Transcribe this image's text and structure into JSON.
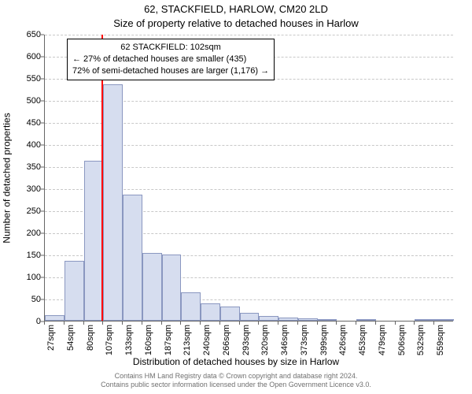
{
  "chart": {
    "type": "histogram",
    "title_main": "62, STACKFIELD, HARLOW, CM20 2LD",
    "title_sub": "Size of property relative to detached houses in Harlow",
    "y_label": "Number of detached properties",
    "x_label": "Distribution of detached houses by size in Harlow",
    "background_color": "#ffffff",
    "grid_color": "#c8c8c8",
    "axis_color": "#666666",
    "ylim": [
      0,
      650
    ],
    "yticks": [
      0,
      50,
      100,
      150,
      200,
      250,
      300,
      350,
      400,
      450,
      500,
      550,
      600,
      650
    ],
    "x_categories": [
      "27sqm",
      "54sqm",
      "80sqm",
      "107sqm",
      "133sqm",
      "160sqm",
      "187sqm",
      "213sqm",
      "240sqm",
      "266sqm",
      "293sqm",
      "320sqm",
      "346sqm",
      "373sqm",
      "399sqm",
      "426sqm",
      "453sqm",
      "479sqm",
      "506sqm",
      "532sqm",
      "559sqm"
    ],
    "bars": [
      {
        "value": 12,
        "color": "#d6ddef",
        "border": "#8a97c0"
      },
      {
        "value": 135,
        "color": "#d6ddef",
        "border": "#8a97c0"
      },
      {
        "value": 363,
        "color": "#d6ddef",
        "border": "#8a97c0"
      },
      {
        "value": 535,
        "color": "#d6ddef",
        "border": "#8a97c0"
      },
      {
        "value": 286,
        "color": "#d6ddef",
        "border": "#8a97c0"
      },
      {
        "value": 154,
        "color": "#d6ddef",
        "border": "#8a97c0"
      },
      {
        "value": 150,
        "color": "#d6ddef",
        "border": "#8a97c0"
      },
      {
        "value": 65,
        "color": "#d6ddef",
        "border": "#8a97c0"
      },
      {
        "value": 40,
        "color": "#d6ddef",
        "border": "#8a97c0"
      },
      {
        "value": 32,
        "color": "#d6ddef",
        "border": "#8a97c0"
      },
      {
        "value": 18,
        "color": "#d6ddef",
        "border": "#8a97c0"
      },
      {
        "value": 10,
        "color": "#d6ddef",
        "border": "#8a97c0"
      },
      {
        "value": 8,
        "color": "#d6ddef",
        "border": "#8a97c0"
      },
      {
        "value": 5,
        "color": "#d6ddef",
        "border": "#8a97c0"
      },
      {
        "value": 4,
        "color": "#d6ddef",
        "border": "#8a97c0"
      },
      {
        "value": 0,
        "color": "#d6ddef",
        "border": "#8a97c0"
      },
      {
        "value": 3,
        "color": "#d6ddef",
        "border": "#8a97c0"
      },
      {
        "value": 0,
        "color": "#d6ddef",
        "border": "#8a97c0"
      },
      {
        "value": 0,
        "color": "#d6ddef",
        "border": "#8a97c0"
      },
      {
        "value": 2,
        "color": "#d6ddef",
        "border": "#8a97c0"
      },
      {
        "value": 2,
        "color": "#d6ddef",
        "border": "#8a97c0"
      }
    ],
    "marker": {
      "x_value": 102,
      "x_min": 27,
      "x_max": 572,
      "color": "#ff0000"
    },
    "info_box": {
      "line1": "62 STACKFIELD: 102sqm",
      "line2": "← 27% of detached houses are smaller (435)",
      "line3": "72% of semi-detached houses are larger (1,176) →",
      "border_color": "#000000",
      "background_color": "#ffffff",
      "font_size_pt": 8
    },
    "footer": {
      "line1": "Contains HM Land Registry data © Crown copyright and database right 2024.",
      "line2": "Contains public sector information licensed under the Open Government Licence v3.0.",
      "color": "#707070"
    }
  }
}
